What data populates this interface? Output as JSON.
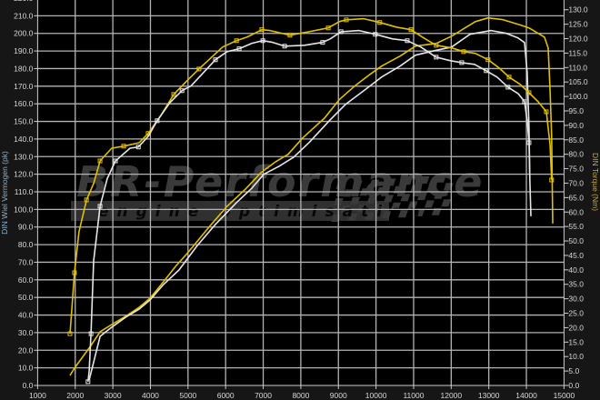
{
  "logo": {
    "brand": "BR-Performance",
    "tagline": "engine optimisation"
  },
  "chart_data": {
    "type": "line",
    "title": "",
    "xlabel": "",
    "ylabel_left": "DIN Wiel Vermogen (pk)",
    "ylabel_right": "DIN Torque (Nm)",
    "xlim": [
      1000,
      15000
    ],
    "ylim_left": [
      0,
      220
    ],
    "ylim_right": [
      0,
      134
    ],
    "x_ticks": [
      "1000",
      "2000",
      "3000",
      "4000",
      "5000",
      "6000",
      "7000",
      "8000",
      "9000",
      "10000",
      "11000",
      "12000",
      "13000",
      "14000",
      "15000"
    ],
    "y_left_ticks": [
      "0.0",
      "10.0",
      "20.0",
      "30.0",
      "40.0",
      "50.0",
      "60.0",
      "70.0",
      "80.0",
      "90.0",
      "100.0",
      "110.0",
      "120.0",
      "130.0",
      "140.0",
      "150.0",
      "160.0",
      "170.0",
      "180.0",
      "190.0",
      "200.0",
      "210.0",
      "220.0"
    ],
    "y_right_ticks": [
      "0.0",
      "5.0",
      "10.0",
      "15.0",
      "20.0",
      "25.0",
      "30.0",
      "35.0",
      "40.0",
      "45.0",
      "50.0",
      "55.0",
      "60.0",
      "65.0",
      "70.0",
      "75.0",
      "80.0",
      "85.0",
      "90.0",
      "95.0",
      "100.0",
      "105.0",
      "110.0",
      "115.0",
      "120.0",
      "125.0",
      "130.0"
    ],
    "grid": true,
    "background": "#000000",
    "colors": {
      "yellow": "#e2c000",
      "white": "#e6e6e6",
      "grid": "#b4b4b4"
    },
    "series": [
      {
        "color": "yellow",
        "axis": "left",
        "markers": false,
        "points": [
          [
            1860,
            5.7
          ],
          [
            1980,
            9.8
          ],
          [
            2420,
            22.7
          ],
          [
            2660,
            30.5
          ],
          [
            2970,
            34.6
          ],
          [
            3380,
            39.8
          ],
          [
            3700,
            44.4
          ],
          [
            3990,
            49.6
          ],
          [
            4350,
            58.9
          ],
          [
            4670,
            67.7
          ],
          [
            5000,
            75.5
          ],
          [
            5560,
            90.0
          ],
          [
            6040,
            101.8
          ],
          [
            6530,
            111.6
          ],
          [
            6940,
            120.9
          ],
          [
            7330,
            127.1
          ],
          [
            7660,
            131.3
          ],
          [
            8050,
            140.6
          ],
          [
            8630,
            151.9
          ],
          [
            9020,
            162.3
          ],
          [
            9430,
            170.0
          ],
          [
            9840,
            176.7
          ],
          [
            10150,
            181.4
          ],
          [
            10640,
            187.1
          ],
          [
            11050,
            192.8
          ],
          [
            11600,
            194.3
          ],
          [
            12010,
            198.4
          ],
          [
            12640,
            206.7
          ],
          [
            12980,
            208.8
          ],
          [
            13370,
            207.8
          ],
          [
            13850,
            204.7
          ],
          [
            14070,
            203.1
          ],
          [
            14480,
            197.9
          ],
          [
            14580,
            191.7
          ],
          [
            14630,
            167.4
          ],
          [
            14670,
            141.6
          ],
          [
            14700,
            92.0
          ]
        ]
      },
      {
        "color": "white",
        "axis": "left",
        "markers": false,
        "points": [
          [
            2370,
            3.1
          ],
          [
            2660,
            27.9
          ],
          [
            2970,
            33.1
          ],
          [
            3380,
            39.3
          ],
          [
            3700,
            43.4
          ],
          [
            3990,
            48.6
          ],
          [
            4350,
            57.4
          ],
          [
            4760,
            65.6
          ],
          [
            5250,
            79.6
          ],
          [
            5730,
            91.5
          ],
          [
            6290,
            103.9
          ],
          [
            6700,
            112.1
          ],
          [
            7010,
            119.9
          ],
          [
            7420,
            124.5
          ],
          [
            7810,
            129.7
          ],
          [
            8220,
            138.0
          ],
          [
            8780,
            150.9
          ],
          [
            9190,
            159.7
          ],
          [
            9670,
            167.4
          ],
          [
            10150,
            175.2
          ],
          [
            10640,
            181.4
          ],
          [
            11050,
            187.6
          ],
          [
            11560,
            190.2
          ],
          [
            12010,
            192.2
          ],
          [
            12500,
            199.5
          ],
          [
            13060,
            201.6
          ],
          [
            13470,
            200.0
          ],
          [
            13780,
            197.4
          ],
          [
            13950,
            194.8
          ],
          [
            14020,
            177.8
          ],
          [
            14070,
            146.8
          ],
          [
            14090,
            117.3
          ],
          [
            14120,
            96.1
          ]
        ]
      },
      {
        "color": "yellow",
        "axis": "right",
        "markers": true,
        "points": [
          [
            1860,
            17.9
          ],
          [
            1910,
            26.4
          ],
          [
            1980,
            39.0
          ],
          [
            2100,
            53.2
          ],
          [
            2300,
            64.2
          ],
          [
            2490,
            69.9
          ],
          [
            2660,
            77.7
          ],
          [
            2970,
            82.1
          ],
          [
            3290,
            82.8
          ],
          [
            3700,
            84.0
          ],
          [
            3940,
            87.2
          ],
          [
            4280,
            93.5
          ],
          [
            4620,
            100.7
          ],
          [
            5000,
            105.8
          ],
          [
            5290,
            109.5
          ],
          [
            5920,
            117.1
          ],
          [
            6290,
            119.3
          ],
          [
            6580,
            120.6
          ],
          [
            6960,
            123.1
          ],
          [
            7180,
            122.8
          ],
          [
            7710,
            121.2
          ],
          [
            8220,
            122.4
          ],
          [
            8730,
            123.7
          ],
          [
            9020,
            125.9
          ],
          [
            9210,
            126.5
          ],
          [
            9670,
            126.9
          ],
          [
            10100,
            125.6
          ],
          [
            10540,
            124.0
          ],
          [
            10930,
            123.1
          ],
          [
            11310,
            119.9
          ],
          [
            11600,
            117.7
          ],
          [
            12010,
            116.8
          ],
          [
            12330,
            115.5
          ],
          [
            12640,
            114.9
          ],
          [
            12980,
            112.7
          ],
          [
            13270,
            109.9
          ],
          [
            13540,
            106.7
          ],
          [
            13830,
            104.2
          ],
          [
            14070,
            101.3
          ],
          [
            14310,
            98.2
          ],
          [
            14530,
            94.7
          ],
          [
            14630,
            83.1
          ],
          [
            14670,
            71.1
          ]
        ]
      },
      {
        "color": "white",
        "axis": "right",
        "markers": true,
        "points": [
          [
            2340,
            1.3
          ],
          [
            2370,
            5.0
          ],
          [
            2420,
            17.9
          ],
          [
            2490,
            43.1
          ],
          [
            2660,
            62.0
          ],
          [
            2850,
            71.5
          ],
          [
            3070,
            77.7
          ],
          [
            3460,
            82.1
          ],
          [
            3680,
            82.5
          ],
          [
            3940,
            86.2
          ],
          [
            4180,
            91.6
          ],
          [
            4520,
            97.9
          ],
          [
            4840,
            102.0
          ],
          [
            5080,
            103.6
          ],
          [
            5730,
            112.7
          ],
          [
            6040,
            115.5
          ],
          [
            6360,
            116.5
          ],
          [
            6700,
            118.4
          ],
          [
            6990,
            119.3
          ],
          [
            7250,
            118.7
          ],
          [
            7570,
            117.4
          ],
          [
            8100,
            117.7
          ],
          [
            8580,
            118.7
          ],
          [
            8780,
            119.9
          ],
          [
            9070,
            122.4
          ],
          [
            9550,
            122.8
          ],
          [
            9980,
            121.5
          ],
          [
            10440,
            119.9
          ],
          [
            10830,
            119.3
          ],
          [
            11190,
            117.1
          ],
          [
            11600,
            113.6
          ],
          [
            11970,
            112.4
          ],
          [
            12280,
            111.7
          ],
          [
            12620,
            111.1
          ],
          [
            12930,
            108.9
          ],
          [
            13220,
            106.7
          ],
          [
            13510,
            103.2
          ],
          [
            13780,
            101.0
          ],
          [
            13950,
            98.2
          ],
          [
            14020,
            91.6
          ],
          [
            14070,
            84.0
          ],
          [
            14090,
            71.8
          ]
        ]
      }
    ]
  }
}
